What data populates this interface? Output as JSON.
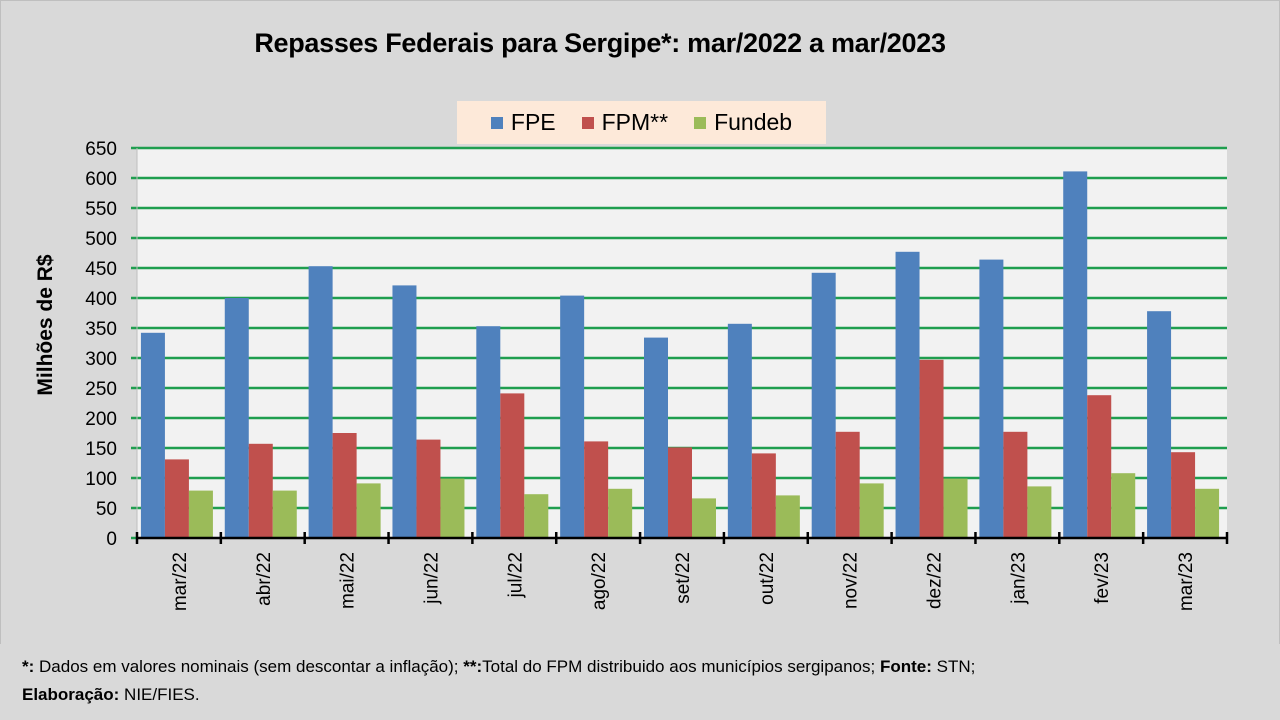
{
  "chart_data": {
    "type": "bar",
    "title": "Repasses Federais para Sergipe*: mar/2022 a mar/2023",
    "xlabel": "",
    "ylabel": "Milhões de R$",
    "ylim": [
      0,
      650
    ],
    "yticks": [
      0,
      50,
      100,
      150,
      200,
      250,
      300,
      350,
      400,
      450,
      500,
      550,
      600,
      650
    ],
    "grid": true,
    "legend_position": "top-center",
    "categories": [
      "mar/22",
      "abr/22",
      "mai/22",
      "jun/22",
      "jul/22",
      "ago/22",
      "set/22",
      "out/22",
      "nov/22",
      "dez/22",
      "jan/23",
      "fev/23",
      "mar/23"
    ],
    "series": [
      {
        "name": "FPE",
        "color": "#4f81bd",
        "values": [
          342,
          400,
          453,
          421,
          353,
          404,
          334,
          357,
          442,
          477,
          464,
          611,
          378
        ]
      },
      {
        "name": "FPM**",
        "color": "#c0504d",
        "values": [
          131,
          157,
          175,
          164,
          241,
          161,
          151,
          141,
          177,
          297,
          177,
          238,
          143
        ]
      },
      {
        "name": "Fundeb",
        "color": "#9bbb59",
        "values": [
          79,
          79,
          91,
          99,
          73,
          82,
          66,
          71,
          91,
          99,
          86,
          108,
          82
        ]
      }
    ]
  },
  "footer": {
    "note1_mark": "*:",
    "note1_text": " Dados em valores nominais (sem descontar a inflação); ",
    "note2_mark": "**:",
    "note2_text": "Total  do FPM distribuido aos municípios sergipanos; ",
    "source_label": "Fonte:",
    "source_text": " STN;",
    "author_label": "Elaboração:",
    "author_text": " NIE/FIES."
  },
  "colors": {
    "background": "#d9d9d9",
    "plot_background": "#f2f2f2",
    "gridline": "#1f9e4f",
    "legend_background": "#fde9d9"
  }
}
